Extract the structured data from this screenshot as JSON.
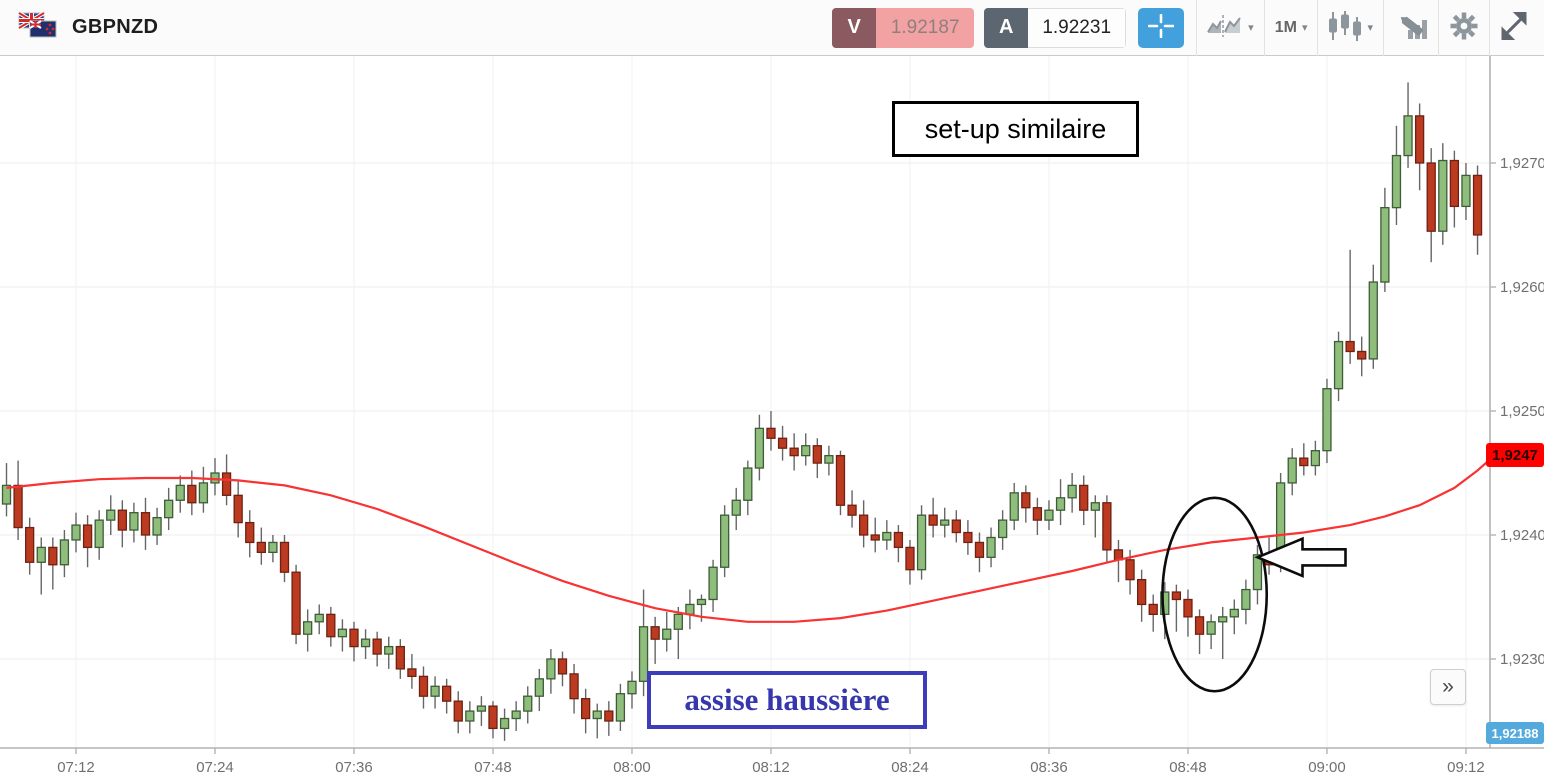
{
  "header": {
    "symbol": "GBPNZD",
    "sell": {
      "label": "V",
      "price": "1.92187"
    },
    "buy": {
      "label": "A",
      "price": "1.92231"
    },
    "timeframe": "1M",
    "caret": "▾",
    "colors": {
      "sell_badge": "#8a5a60",
      "sell_bg": "#f2a2a2",
      "buy_badge": "#5c6671",
      "crosshair_bg": "#42a0dc",
      "icon_gray": "#8d959d"
    }
  },
  "misc": {
    "scroll_to_end_label": "»"
  },
  "chart_data": {
    "type": "candlestick",
    "symbol": "GBPNZD",
    "interval": "1M",
    "first_candle_time": "07:06",
    "interval_minutes": 1,
    "grid": true,
    "time_labels": [
      "07:12",
      "07:24",
      "07:36",
      "07:48",
      "08:00",
      "08:12",
      "08:24",
      "08:36",
      "08:48",
      "09:00",
      "09:12"
    ],
    "price_ticks": [
      {
        "label": "1,9270",
        "value": 1.927
      },
      {
        "label": "1,9260",
        "value": 1.926
      },
      {
        "label": "1,9250",
        "value": 1.925
      },
      {
        "label": "1,9240",
        "value": 1.924
      },
      {
        "label": "1,9230",
        "value": 1.923
      }
    ],
    "ylim": [
      1.9222,
      1.9279
    ],
    "colors": {
      "up_fill": "#8ebd7c",
      "up_stroke": "#3e5c38",
      "down_fill": "#bc3a20",
      "down_stroke": "#6e2112",
      "wick": "#666666",
      "ma": "#f93232",
      "grid": "#ededed",
      "axis": "#b3b3b3",
      "tick_text": "#707070"
    },
    "last_price_tag": {
      "text": "1,9247",
      "value": 1.9247,
      "color": "#fe0000"
    },
    "bottom_price_tag": {
      "text": "1,92188",
      "value": 1.92188,
      "color": "#54a9dd"
    },
    "annotations": {
      "setup_box": {
        "text": "set-up similaire"
      },
      "assise_box": {
        "text": "assise haussière"
      },
      "ellipse": {
        "cx_min": 98.3,
        "cy_price": 1.92352,
        "rx_min": 4.5,
        "ry_pips": 7.8
      },
      "arrow": {
        "tip_min": 102.0,
        "tip_price": 1.92382,
        "length_min": 7.6,
        "head_pips": 1.5,
        "shaft_pips": 0.65
      }
    },
    "ma_points": [
      [
        -6,
        1.92438
      ],
      [
        -2,
        1.92442
      ],
      [
        2,
        1.92445
      ],
      [
        6,
        1.92446
      ],
      [
        10,
        1.92446
      ],
      [
        14,
        1.92444
      ],
      [
        18,
        1.9244
      ],
      [
        22,
        1.92432
      ],
      [
        26,
        1.92421
      ],
      [
        30,
        1.92407
      ],
      [
        34,
        1.92392
      ],
      [
        38,
        1.92377
      ],
      [
        42,
        1.92363
      ],
      [
        46,
        1.92351
      ],
      [
        50,
        1.92341
      ],
      [
        54,
        1.92334
      ],
      [
        58,
        1.9233
      ],
      [
        62,
        1.9233
      ],
      [
        66,
        1.92333
      ],
      [
        70,
        1.92339
      ],
      [
        74,
        1.92347
      ],
      [
        78,
        1.92355
      ],
      [
        82,
        1.92363
      ],
      [
        86,
        1.92371
      ],
      [
        90,
        1.9238
      ],
      [
        94,
        1.92388
      ],
      [
        98,
        1.92394
      ],
      [
        102,
        1.92398
      ],
      [
        106,
        1.92402
      ],
      [
        110,
        1.92408
      ],
      [
        113,
        1.92415
      ],
      [
        116,
        1.92424
      ],
      [
        119,
        1.92438
      ],
      [
        121,
        1.92452
      ],
      [
        122.2,
        1.92462
      ]
    ],
    "candles": [
      [
        1.92425,
        1.92458,
        1.92415,
        1.9244
      ],
      [
        1.9244,
        1.9246,
        1.92396,
        1.92406
      ],
      [
        1.92406,
        1.92414,
        1.92368,
        1.92378
      ],
      [
        1.92378,
        1.92398,
        1.92352,
        1.9239
      ],
      [
        1.9239,
        1.92398,
        1.92356,
        1.92376
      ],
      [
        1.92376,
        1.92404,
        1.92366,
        1.92396
      ],
      [
        1.92396,
        1.92418,
        1.92386,
        1.92408
      ],
      [
        1.92408,
        1.92416,
        1.92374,
        1.9239
      ],
      [
        1.9239,
        1.9242,
        1.9238,
        1.92412
      ],
      [
        1.92412,
        1.92432,
        1.924,
        1.9242
      ],
      [
        1.9242,
        1.92428,
        1.9239,
        1.92404
      ],
      [
        1.92404,
        1.92426,
        1.92394,
        1.92418
      ],
      [
        1.92418,
        1.9243,
        1.92388,
        1.924
      ],
      [
        1.924,
        1.92422,
        1.92392,
        1.92414
      ],
      [
        1.92414,
        1.92438,
        1.92404,
        1.92428
      ],
      [
        1.92428,
        1.92448,
        1.92418,
        1.9244
      ],
      [
        1.9244,
        1.92452,
        1.92416,
        1.92426
      ],
      [
        1.92426,
        1.92455,
        1.92418,
        1.92442
      ],
      [
        1.92442,
        1.92462,
        1.92432,
        1.9245
      ],
      [
        1.9245,
        1.92465,
        1.92424,
        1.92432
      ],
      [
        1.92432,
        1.92444,
        1.92398,
        1.9241
      ],
      [
        1.9241,
        1.9242,
        1.92382,
        1.92394
      ],
      [
        1.92394,
        1.92406,
        1.92376,
        1.92386
      ],
      [
        1.92386,
        1.924,
        1.92378,
        1.92394
      ],
      [
        1.92394,
        1.924,
        1.92362,
        1.9237
      ],
      [
        1.9237,
        1.92376,
        1.92312,
        1.9232
      ],
      [
        1.9232,
        1.9234,
        1.92306,
        1.9233
      ],
      [
        1.9233,
        1.92344,
        1.9232,
        1.92336
      ],
      [
        1.92336,
        1.92342,
        1.9231,
        1.92318
      ],
      [
        1.92318,
        1.92332,
        1.92306,
        1.92324
      ],
      [
        1.92324,
        1.9233,
        1.92298,
        1.9231
      ],
      [
        1.9231,
        1.92324,
        1.923,
        1.92316
      ],
      [
        1.92316,
        1.92322,
        1.92294,
        1.92304
      ],
      [
        1.92304,
        1.92318,
        1.92292,
        1.9231
      ],
      [
        1.9231,
        1.92316,
        1.92284,
        1.92292
      ],
      [
        1.92292,
        1.92304,
        1.92276,
        1.92286
      ],
      [
        1.92286,
        1.92294,
        1.9226,
        1.9227
      ],
      [
        1.9227,
        1.92286,
        1.9226,
        1.92278
      ],
      [
        1.92278,
        1.92284,
        1.92256,
        1.92266
      ],
      [
        1.92266,
        1.92274,
        1.9224,
        1.9225
      ],
      [
        1.9225,
        1.92266,
        1.9224,
        1.92258
      ],
      [
        1.92258,
        1.9227,
        1.92246,
        1.92262
      ],
      [
        1.92262,
        1.92266,
        1.92236,
        1.92244
      ],
      [
        1.92244,
        1.9226,
        1.92234,
        1.92252
      ],
      [
        1.92252,
        1.92266,
        1.92242,
        1.92258
      ],
      [
        1.92258,
        1.92278,
        1.92248,
        1.9227
      ],
      [
        1.9227,
        1.92292,
        1.92258,
        1.92284
      ],
      [
        1.92284,
        1.92308,
        1.92272,
        1.923
      ],
      [
        1.923,
        1.92306,
        1.92278,
        1.92288
      ],
      [
        1.92288,
        1.92296,
        1.92256,
        1.92268
      ],
      [
        1.92268,
        1.92276,
        1.9224,
        1.92252
      ],
      [
        1.92252,
        1.92264,
        1.92236,
        1.92258
      ],
      [
        1.92258,
        1.92266,
        1.92238,
        1.9225
      ],
      [
        1.9225,
        1.9228,
        1.92242,
        1.92272
      ],
      [
        1.92272,
        1.9229,
        1.9226,
        1.92282
      ],
      [
        1.92282,
        1.92356,
        1.9227,
        1.92326
      ],
      [
        1.92326,
        1.92334,
        1.92296,
        1.92316
      ],
      [
        1.92316,
        1.92338,
        1.92306,
        1.92324
      ],
      [
        1.92324,
        1.92342,
        1.923,
        1.92336
      ],
      [
        1.92336,
        1.92356,
        1.92324,
        1.92344
      ],
      [
        1.92344,
        1.92352,
        1.9233,
        1.92348
      ],
      [
        1.92348,
        1.9238,
        1.92338,
        1.92374
      ],
      [
        1.92374,
        1.92424,
        1.92366,
        1.92416
      ],
      [
        1.92416,
        1.92438,
        1.92404,
        1.92428
      ],
      [
        1.92428,
        1.9246,
        1.92416,
        1.92454
      ],
      [
        1.92454,
        1.92497,
        1.92444,
        1.92486
      ],
      [
        1.92486,
        1.925,
        1.92468,
        1.92478
      ],
      [
        1.92478,
        1.92488,
        1.9246,
        1.9247
      ],
      [
        1.9247,
        1.92482,
        1.92452,
        1.92464
      ],
      [
        1.92464,
        1.92482,
        1.92456,
        1.92472
      ],
      [
        1.92472,
        1.92478,
        1.92446,
        1.92458
      ],
      [
        1.92458,
        1.92472,
        1.92448,
        1.92464
      ],
      [
        1.92464,
        1.92468,
        1.92416,
        1.92424
      ],
      [
        1.92424,
        1.92436,
        1.92406,
        1.92416
      ],
      [
        1.92416,
        1.92428,
        1.9239,
        1.924
      ],
      [
        1.924,
        1.92414,
        1.92386,
        1.92396
      ],
      [
        1.92396,
        1.92412,
        1.92388,
        1.92402
      ],
      [
        1.92402,
        1.92408,
        1.92378,
        1.9239
      ],
      [
        1.9239,
        1.92396,
        1.9236,
        1.92372
      ],
      [
        1.92372,
        1.92424,
        1.92364,
        1.92416
      ],
      [
        1.92416,
        1.9243,
        1.92398,
        1.92408
      ],
      [
        1.92408,
        1.92422,
        1.92398,
        1.92412
      ],
      [
        1.92412,
        1.9242,
        1.92394,
        1.92402
      ],
      [
        1.92402,
        1.92412,
        1.92384,
        1.92394
      ],
      [
        1.92394,
        1.92402,
        1.9237,
        1.92382
      ],
      [
        1.92382,
        1.92406,
        1.92374,
        1.92398
      ],
      [
        1.92398,
        1.9242,
        1.92388,
        1.92412
      ],
      [
        1.92412,
        1.92442,
        1.92404,
        1.92434
      ],
      [
        1.92434,
        1.9244,
        1.9241,
        1.92422
      ],
      [
        1.92422,
        1.9243,
        1.924,
        1.92412
      ],
      [
        1.92412,
        1.92428,
        1.92404,
        1.9242
      ],
      [
        1.9242,
        1.92445,
        1.92408,
        1.9243
      ],
      [
        1.9243,
        1.9245,
        1.92418,
        1.9244
      ],
      [
        1.9244,
        1.92448,
        1.92408,
        1.9242
      ],
      [
        1.9242,
        1.92432,
        1.92398,
        1.92426
      ],
      [
        1.92426,
        1.92432,
        1.92378,
        1.92388
      ],
      [
        1.92388,
        1.92396,
        1.92362,
        1.9238
      ],
      [
        1.9238,
        1.92388,
        1.92352,
        1.92364
      ],
      [
        1.92364,
        1.92372,
        1.9233,
        1.92344
      ],
      [
        1.92344,
        1.92352,
        1.92322,
        1.92336
      ],
      [
        1.92336,
        1.92362,
        1.92316,
        1.92354
      ],
      [
        1.92354,
        1.9236,
        1.92322,
        1.92348
      ],
      [
        1.92348,
        1.92356,
        1.92318,
        1.92334
      ],
      [
        1.92334,
        1.9234,
        1.92304,
        1.9232
      ],
      [
        1.9232,
        1.92336,
        1.92308,
        1.9233
      ],
      [
        1.9233,
        1.92342,
        1.923,
        1.92334
      ],
      [
        1.92334,
        1.92348,
        1.9232,
        1.9234
      ],
      [
        1.9234,
        1.92364,
        1.92328,
        1.92356
      ],
      [
        1.92356,
        1.92392,
        1.92344,
        1.92384
      ],
      [
        1.92384,
        1.92398,
        1.92368,
        1.92376
      ],
      [
        1.92376,
        1.9245,
        1.9237,
        1.92442
      ],
      [
        1.92442,
        1.9247,
        1.92432,
        1.92462
      ],
      [
        1.92462,
        1.92474,
        1.92448,
        1.92456
      ],
      [
        1.92456,
        1.92476,
        1.92448,
        1.92468
      ],
      [
        1.92468,
        1.92526,
        1.92458,
        1.92518
      ],
      [
        1.92518,
        1.92564,
        1.92508,
        1.92556
      ],
      [
        1.92556,
        1.9263,
        1.92538,
        1.92548
      ],
      [
        1.92548,
        1.9256,
        1.92528,
        1.92542
      ],
      [
        1.92542,
        1.92618,
        1.92534,
        1.92604
      ],
      [
        1.92604,
        1.9268,
        1.92596,
        1.92664
      ],
      [
        1.92664,
        1.9273,
        1.9265,
        1.92706
      ],
      [
        1.92706,
        1.92765,
        1.92696,
        1.92738
      ],
      [
        1.92738,
        1.92748,
        1.92678,
        1.927
      ],
      [
        1.927,
        1.92712,
        1.9262,
        1.92645
      ],
      [
        1.92645,
        1.92716,
        1.92634,
        1.92702
      ],
      [
        1.92702,
        1.9271,
        1.92648,
        1.92665
      ],
      [
        1.92665,
        1.927,
        1.92654,
        1.9269
      ],
      [
        1.9269,
        1.92698,
        1.92626,
        1.92642
      ]
    ]
  }
}
